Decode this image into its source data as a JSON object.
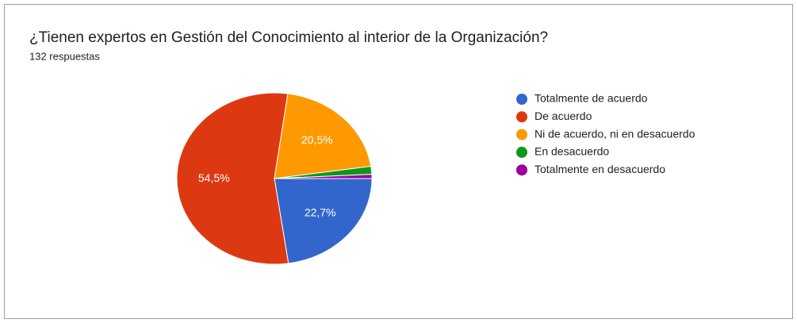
{
  "chart_data": {
    "type": "pie",
    "title": "¿Tienen expertos en Gestión del Conocimiento al interior de la Organización?",
    "subtitle": "132 respuestas",
    "categories": [
      "Totalmente de acuerdo",
      "De acuerdo",
      "Ni de acuerdo, ni en desacuerdo",
      "En desacuerdo",
      "Totalmente en desacuerdo"
    ],
    "values": [
      22.7,
      54.5,
      20.5,
      1.5,
      0.8
    ],
    "value_labels": [
      "22,7%",
      "54,5%",
      "20,5%",
      null,
      null
    ],
    "colors": [
      "#3366cc",
      "#dc3912",
      "#ff9900",
      "#109618",
      "#990099"
    ],
    "legend": "right"
  }
}
